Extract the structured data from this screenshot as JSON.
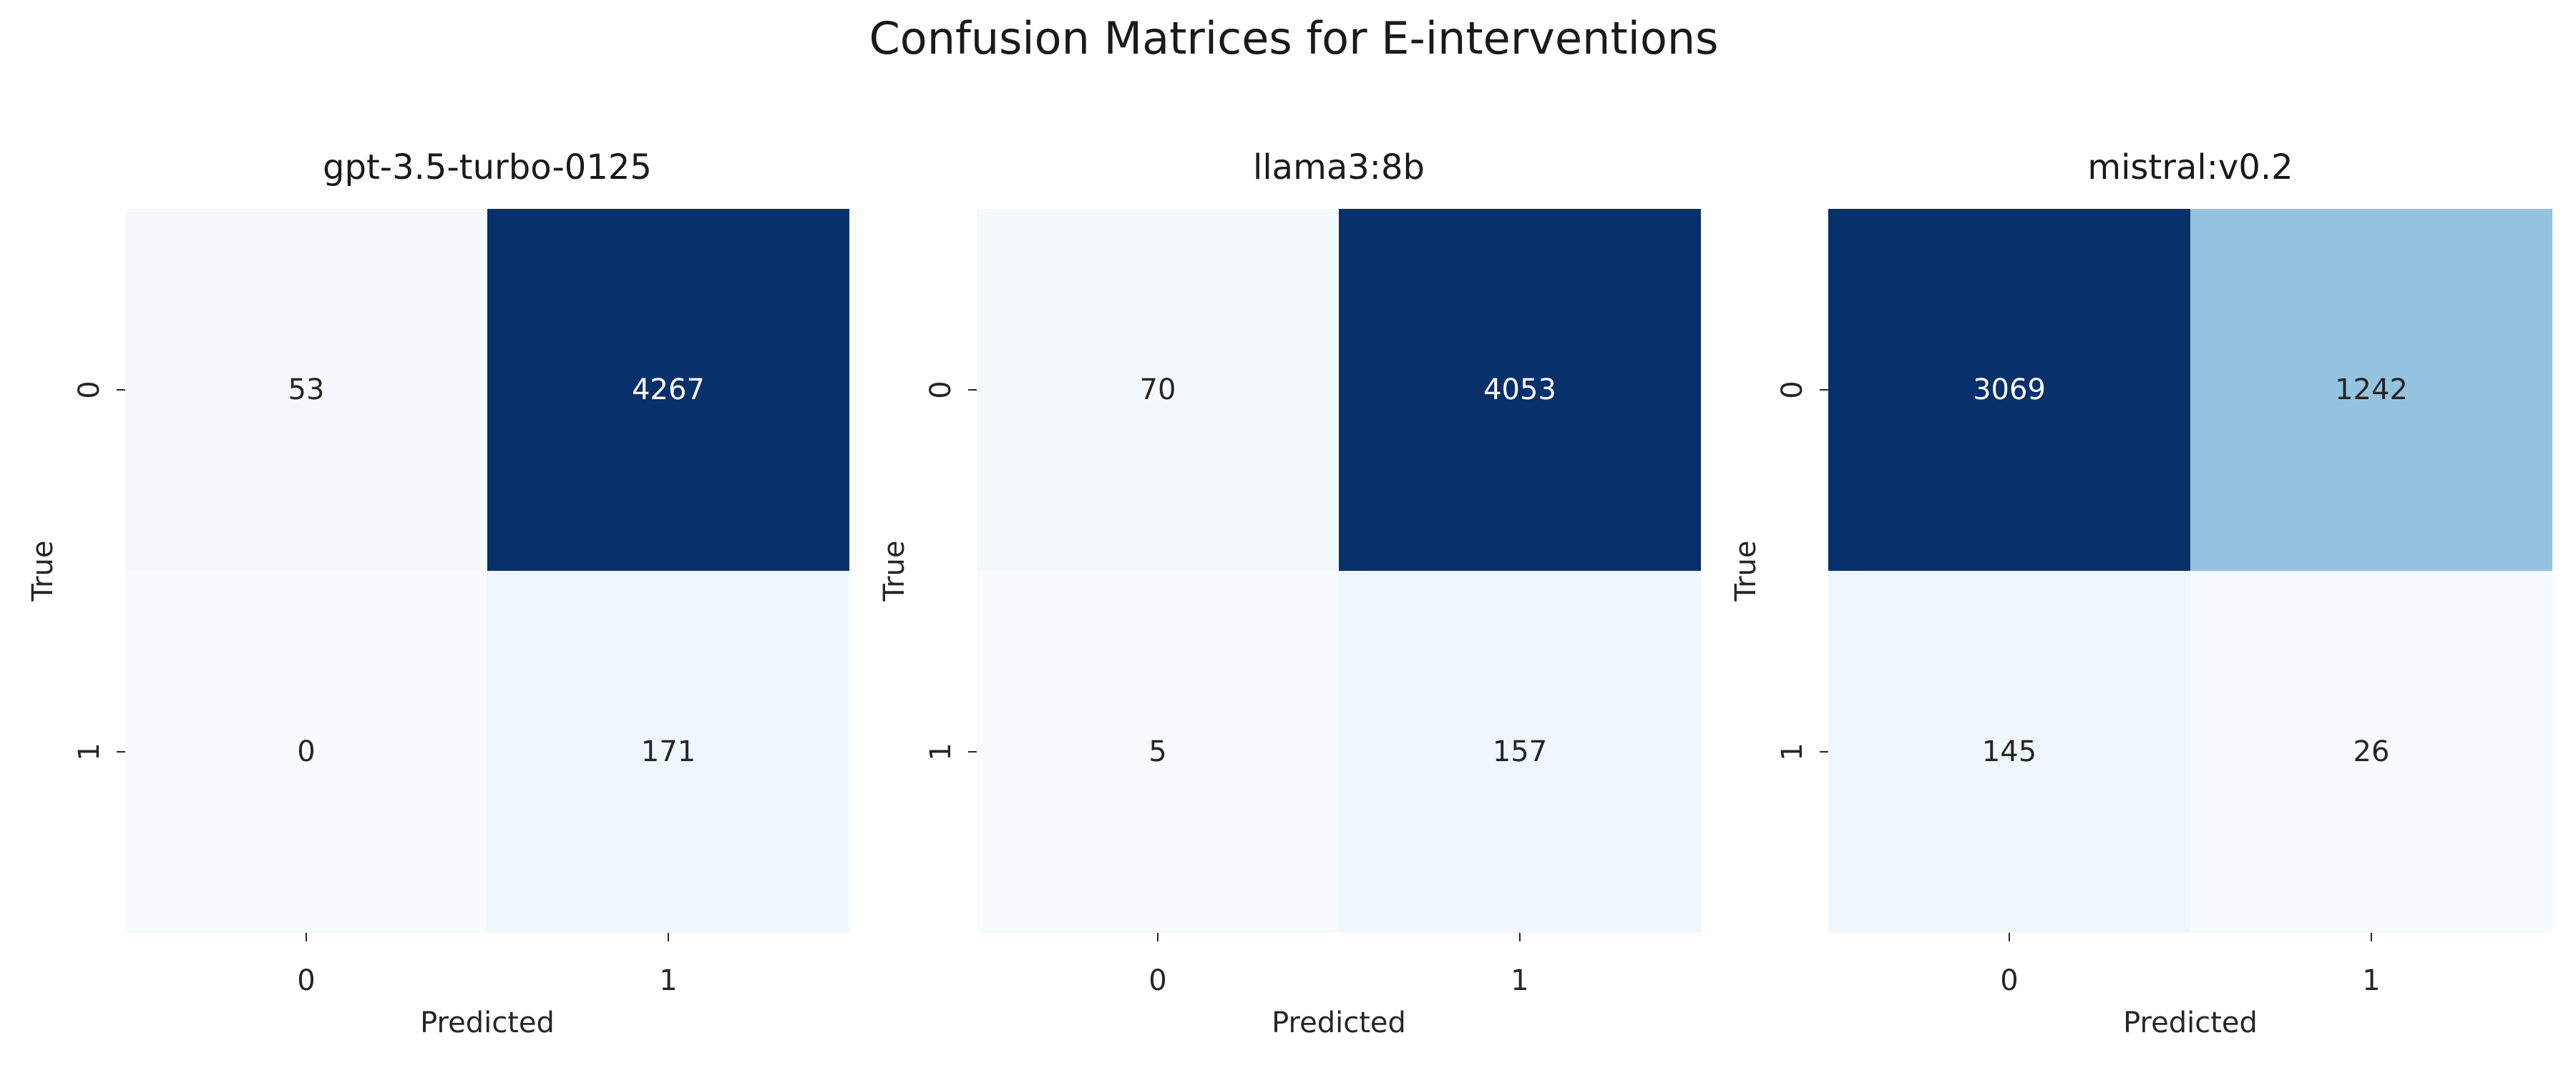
{
  "chart_data": {
    "type": "heatmap",
    "title": "Confusion Matrices for E-interventions",
    "colormap": "Blues",
    "colorbar": false,
    "grid": false,
    "matrices": [
      {
        "title": "gpt-3.5-turbo-0125",
        "xlabel": "Predicted",
        "ylabel": "True",
        "x_tick_labels": [
          "0",
          "1"
        ],
        "y_tick_labels": [
          "0",
          "1"
        ],
        "values": [
          [
            53,
            4267
          ],
          [
            0,
            171
          ]
        ]
      },
      {
        "title": "llama3:8b",
        "xlabel": "Predicted",
        "ylabel": "True",
        "x_tick_labels": [
          "0",
          "1"
        ],
        "y_tick_labels": [
          "0",
          "1"
        ],
        "values": [
          [
            70,
            4053
          ],
          [
            5,
            157
          ]
        ]
      },
      {
        "title": "mistral:v0.2",
        "xlabel": "Predicted",
        "ylabel": "True",
        "x_tick_labels": [
          "0",
          "1"
        ],
        "y_tick_labels": [
          "0",
          "1"
        ],
        "values": [
          [
            3069,
            1242
          ],
          [
            145,
            26
          ]
        ]
      }
    ]
  }
}
